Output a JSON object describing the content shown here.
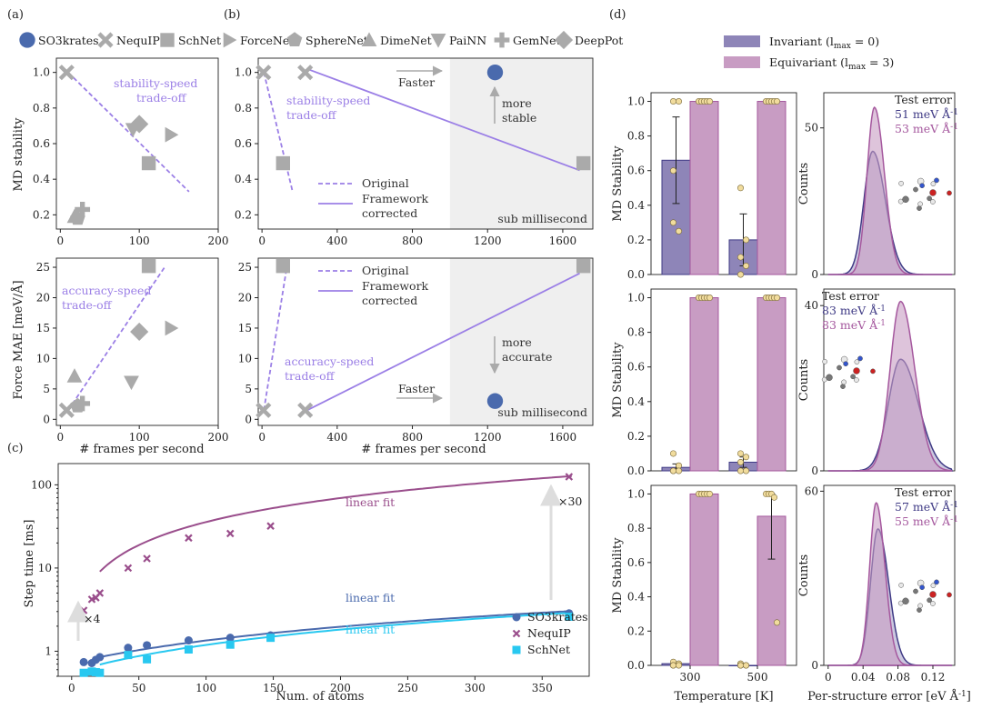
{
  "colors": {
    "so3": "#4a6aad",
    "nequip": "#9a4e8c",
    "schnet_c": "#28c8f0",
    "gray": "#aaaaaa",
    "trade": "#9b7fe6",
    "inv": "#8e85b8",
    "inv_line": "#3f3a85",
    "eqv": "#c89cc3",
    "eqv_line": "#a5589e",
    "dot": "#f1dc9d",
    "shade": "#efefef"
  },
  "labels": {
    "panel_a": "(a)",
    "panel_b": "(b)",
    "panel_c": "(c)",
    "panel_d": "(d)",
    "legend_models": [
      "SO3krates",
      "NequIP",
      "SchNet",
      "ForceNet",
      "SphereNet",
      "DimeNet",
      "PaiNN",
      "GemNet",
      "DeepPot"
    ],
    "ylab_md": "MD stability",
    "ylab_force": "Force MAE [meV/Å]",
    "xlab_fps": "# frames per second",
    "stab_trade": [
      "stability-speed",
      "trade-off"
    ],
    "acc_trade": [
      "accuracy-speed",
      "trade-off"
    ],
    "faster": "Faster",
    "more_stable": [
      "more",
      "stable"
    ],
    "more_accurate": [
      "more",
      "accurate"
    ],
    "sub_ms": "sub millisecond",
    "original": "Original",
    "framework": [
      "Framework",
      "corrected"
    ],
    "ylab_step": "Step time [ms]",
    "xlab_atoms": "Num. of atoms",
    "linear_fit": "linear fit",
    "x4": "×4",
    "x30": "×30",
    "c_legend": [
      "SO3krates",
      "NequIP",
      "SchNet"
    ],
    "d_legend": [
      "Invariant (l",
      "max",
      " = 0)",
      "Equivariant (l",
      "max",
      " = 3)"
    ],
    "ylab_d": "MD Stability",
    "ylab_counts": "Counts",
    "xlab_temp": "Temperature [K]",
    "xlab_err": "Per-structure error [eV Å",
    "xlab_err_sup": "-1",
    "xlab_err_end": "]",
    "test_error": "Test error",
    "err_unit": " meV Å",
    "err_sup": "-1",
    "d_rows": [
      {
        "inv_err": "51",
        "eqv_err": "53"
      },
      {
        "inv_err": "83",
        "eqv_err": "83"
      },
      {
        "inv_err": "57",
        "eqv_err": "55"
      }
    ]
  },
  "chart_data": [
    {
      "type": "scatter",
      "id": "a-top",
      "xlabel": "",
      "ylabel": "MD stability",
      "xlim": [
        -5,
        200
      ],
      "ylim": [
        0.12,
        1.08
      ],
      "xticks": [
        0,
        100,
        200
      ],
      "yticks": [
        0.2,
        0.4,
        0.6,
        0.8,
        1.0
      ],
      "points": [
        {
          "model": "NequIP",
          "x": 8,
          "y": 1.0
        },
        {
          "model": "SchNet",
          "x": 112,
          "y": 0.49
        },
        {
          "model": "ForceNet",
          "x": 140,
          "y": 0.65
        },
        {
          "model": "PaiNN",
          "x": 92,
          "y": 0.68
        },
        {
          "model": "DeepPot",
          "x": 100,
          "y": 0.71
        },
        {
          "model": "DimeNet",
          "x": 18,
          "y": 0.19
        },
        {
          "model": "SphereNet",
          "x": 22,
          "y": 0.18
        },
        {
          "model": "GemNet",
          "x": 28,
          "y": 0.23
        }
      ],
      "trend": [
        [
          10,
          1.0
        ],
        [
          163,
          0.33
        ]
      ]
    },
    {
      "type": "scatter",
      "id": "b-top",
      "xlabel": "",
      "ylabel": "",
      "xlim": [
        -20,
        1760
      ],
      "ylim": [
        0.12,
        1.08
      ],
      "xticks": [
        0,
        400,
        800,
        1200,
        1600
      ],
      "yticks": [
        0.2,
        0.4,
        0.6,
        0.8,
        1.0
      ],
      "shade_from": 1000,
      "points": [
        {
          "model": "NequIP",
          "x": 8,
          "y": 1.0
        },
        {
          "model": "NequIP",
          "x": 230,
          "y": 1.0
        },
        {
          "model": "SchNet",
          "x": 112,
          "y": 0.49
        },
        {
          "model": "SchNet",
          "x": 1710,
          "y": 0.49
        },
        {
          "model": "SO3krates",
          "x": 1240,
          "y": 1.0
        }
      ],
      "original": [
        [
          10,
          1.0
        ],
        [
          163,
          0.33
        ]
      ],
      "corrected": [
        [
          240,
          1.02
        ],
        [
          1690,
          0.45
        ]
      ]
    },
    {
      "type": "scatter",
      "id": "a-bottom",
      "xlabel": "# frames per second",
      "ylabel": "Force MAE [meV/Å]",
      "xlim": [
        -5,
        200
      ],
      "ylim": [
        -1,
        26.5
      ],
      "xticks": [
        0,
        100,
        200
      ],
      "yticks": [
        0,
        5,
        10,
        15,
        20,
        25
      ],
      "points": [
        {
          "model": "NequIP",
          "x": 8,
          "y": 1.5
        },
        {
          "model": "SchNet",
          "x": 112,
          "y": 25.2
        },
        {
          "model": "ForceNet",
          "x": 140,
          "y": 15.0
        },
        {
          "model": "DeepPot",
          "x": 100,
          "y": 14.4
        },
        {
          "model": "DimeNet",
          "x": 18,
          "y": 7.1
        },
        {
          "model": "PaiNN",
          "x": 90,
          "y": 6.1
        },
        {
          "model": "SphereNet",
          "x": 22,
          "y": 2.2
        },
        {
          "model": "GemNet",
          "x": 28,
          "y": 2.6
        }
      ],
      "trend": [
        [
          10,
          1.5
        ],
        [
          132,
          25.0
        ]
      ]
    },
    {
      "type": "scatter",
      "id": "b-bottom",
      "xlabel": "# frames per second",
      "ylabel": "",
      "xlim": [
        -20,
        1760
      ],
      "ylim": [
        -1,
        26.5
      ],
      "xticks": [
        0,
        400,
        800,
        1200,
        1600
      ],
      "yticks": [
        0,
        5,
        10,
        15,
        20,
        25
      ],
      "shade_from": 1000,
      "points": [
        {
          "model": "NequIP",
          "x": 8,
          "y": 1.5
        },
        {
          "model": "NequIP",
          "x": 230,
          "y": 1.5
        },
        {
          "model": "SchNet",
          "x": 112,
          "y": 25.2
        },
        {
          "model": "SchNet",
          "x": 1710,
          "y": 25.2
        },
        {
          "model": "SO3krates",
          "x": 1240,
          "y": 3.0
        }
      ],
      "original": [
        [
          10,
          1.5
        ],
        [
          132,
          25.0
        ]
      ],
      "corrected": [
        [
          240,
          1.5
        ],
        [
          1690,
          24.0
        ]
      ]
    },
    {
      "type": "scatter",
      "id": "c",
      "scale": "log-y",
      "xlabel": "Num. of atoms",
      "ylabel": "Step time [ms]",
      "xlim": [
        -10,
        385
      ],
      "ylim": [
        0.5,
        180
      ],
      "xticks": [
        0,
        50,
        100,
        150,
        200,
        250,
        300,
        350
      ],
      "yticks": [
        1,
        10,
        100
      ],
      "series": [
        {
          "name": "SO3krates",
          "x": [
            9,
            15,
            18,
            21,
            42,
            56,
            87,
            118,
            148,
            370
          ],
          "y": [
            0.74,
            0.72,
            0.79,
            0.85,
            1.1,
            1.18,
            1.35,
            1.45,
            1.55,
            2.85
          ]
        },
        {
          "name": "NequIP",
          "x": [
            9,
            15,
            18,
            21,
            42,
            56,
            87,
            118,
            148,
            370
          ],
          "y": [
            3.1,
            4.2,
            4.4,
            5.0,
            10.0,
            13.0,
            23.0,
            26.0,
            32.0,
            125.0
          ]
        },
        {
          "name": "SchNet",
          "x": [
            9,
            15,
            18,
            21,
            42,
            56,
            87,
            118,
            148,
            370
          ],
          "y": [
            0.55,
            0.57,
            0.56,
            0.55,
            0.9,
            0.8,
            1.05,
            1.2,
            1.45,
            2.6
          ]
        }
      ],
      "fits": [
        {
          "name": "NequIP",
          "a": 0.337,
          "b": 2.0,
          "from": 21
        },
        {
          "name": "SO3krates",
          "a": 0.00625,
          "b": 0.72,
          "from": 21
        },
        {
          "name": "SchNet",
          "a": 0.0063,
          "b": 0.56,
          "from": 21
        }
      ]
    },
    {
      "type": "bar",
      "id": "d-row1",
      "categories": [
        "300",
        "500"
      ],
      "series": [
        {
          "name": "Invariant (lmax = 0)",
          "values": [
            0.66,
            0.2
          ],
          "err": [
            0.25,
            0.15
          ]
        },
        {
          "name": "Equivariant (lmax = 3)",
          "values": [
            1.0,
            1.0
          ],
          "err": [
            0,
            0
          ]
        }
      ],
      "points": {
        "inv": [
          [
            1.0,
            1.0,
            0.6,
            0.25,
            0.3
          ],
          [
            0.5,
            0.2,
            0.1,
            0.05,
            0.0
          ]
        ],
        "eqv": [
          [
            1,
            1,
            1,
            1,
            1
          ],
          [
            1,
            1,
            1,
            1,
            1
          ]
        ]
      },
      "ylim": [
        0,
        1.05
      ],
      "yticks": [
        0.0,
        0.2,
        0.4,
        0.6,
        0.8,
        1.0
      ]
    },
    {
      "type": "bar",
      "id": "d-row2",
      "categories": [
        "300",
        "500"
      ],
      "series": [
        {
          "name": "Invariant (lmax = 0)",
          "values": [
            0.02,
            0.05
          ],
          "err": [
            0.02,
            0.03
          ]
        },
        {
          "name": "Equivariant (lmax = 3)",
          "values": [
            1.0,
            1.0
          ],
          "err": [
            0,
            0
          ]
        }
      ],
      "points": {
        "inv": [
          [
            0.1,
            0.03,
            0.0,
            0.0,
            0.0
          ],
          [
            0.1,
            0.08,
            0.05,
            0.0,
            0.0
          ]
        ],
        "eqv": [
          [
            1,
            1,
            1,
            1,
            1
          ],
          [
            1,
            1,
            1,
            1,
            1
          ]
        ]
      },
      "ylim": [
        0,
        1.05
      ],
      "yticks": [
        0.0,
        0.2,
        0.4,
        0.6,
        0.8,
        1.0
      ]
    },
    {
      "type": "bar",
      "id": "d-row3",
      "xlabel": "Temperature [K]",
      "categories": [
        "300",
        "500"
      ],
      "series": [
        {
          "name": "Invariant (lmax = 0)",
          "values": [
            0.01,
            0.0
          ],
          "err": [
            0.01,
            0
          ]
        },
        {
          "name": "Equivariant (lmax = 3)",
          "values": [
            1.0,
            0.87
          ],
          "err": [
            0,
            0.25
          ]
        }
      ],
      "points": {
        "inv": [
          [
            0.02,
            0.01,
            0.0,
            0.0,
            0.0
          ],
          [
            0.01,
            0.0,
            0.0,
            0.0,
            0.0
          ]
        ],
        "eqv": [
          [
            1,
            1,
            1,
            1,
            1
          ],
          [
            1,
            1,
            1,
            0.98,
            0.25
          ]
        ]
      },
      "ylim": [
        0,
        1.05
      ],
      "yticks": [
        0.0,
        0.2,
        0.4,
        0.6,
        0.8,
        1.0
      ]
    },
    {
      "type": "area",
      "id": "d-hist",
      "xlabel": "Per-structure error [eV Å-1]",
      "xlim": [
        -0.005,
        0.145
      ],
      "xticks": [
        0,
        0.04,
        0.08,
        0.12
      ],
      "rows": [
        {
          "ylim": [
            0,
            62
          ],
          "yticks": [
            0,
            50
          ],
          "inv_peak": 42,
          "inv_mu": 0.051,
          "inv_sd": 0.01,
          "eqv_peak": 57,
          "eqv_mu": 0.053,
          "eqv_sd": 0.0085
        },
        {
          "ylim": [
            0,
            44
          ],
          "yticks": [
            0,
            40
          ],
          "inv_peak": 27,
          "inv_mu": 0.083,
          "inv_sd": 0.014,
          "eqv_peak": 41,
          "eqv_mu": 0.083,
          "eqv_sd": 0.012
        },
        {
          "ylim": [
            0,
            62
          ],
          "yticks": [
            0,
            60
          ],
          "inv_peak": 47,
          "inv_mu": 0.057,
          "inv_sd": 0.0085,
          "eqv_peak": 56,
          "eqv_mu": 0.055,
          "eqv_sd": 0.0075
        }
      ]
    }
  ]
}
